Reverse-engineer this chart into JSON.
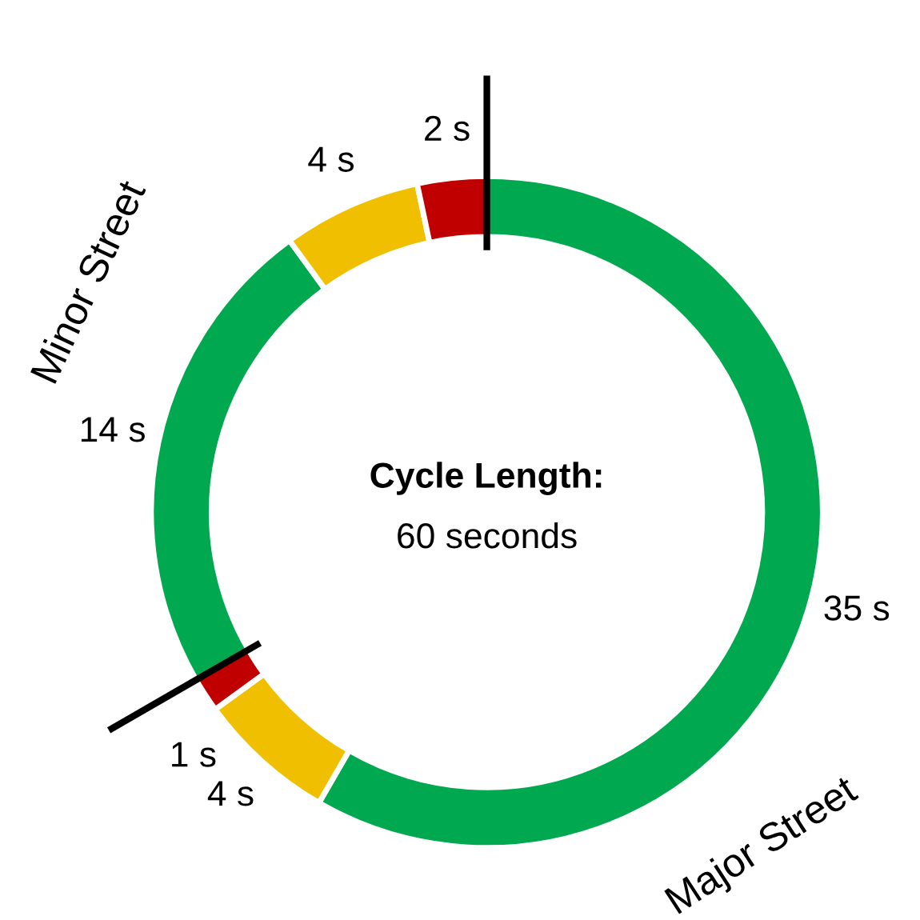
{
  "chart_data": {
    "type": "donut",
    "categories": [
      null,
      null,
      null,
      null,
      null,
      null
    ],
    "values": [
      35,
      4,
      1,
      14,
      4,
      2
    ],
    "colors": [
      "#00a84f",
      "#f0c000",
      "#c00000",
      "#00a84f",
      "#f0c000",
      "#c00000"
    ],
    "value_labels": [
      "35 s",
      "4 s",
      "1 s",
      "14 s",
      "4 s",
      "2 s"
    ],
    "title": "Cycle Length:",
    "subtitle": "60 seconds",
    "annotations": [
      "Major Street",
      "Minor Street"
    ],
    "legend": false
  }
}
